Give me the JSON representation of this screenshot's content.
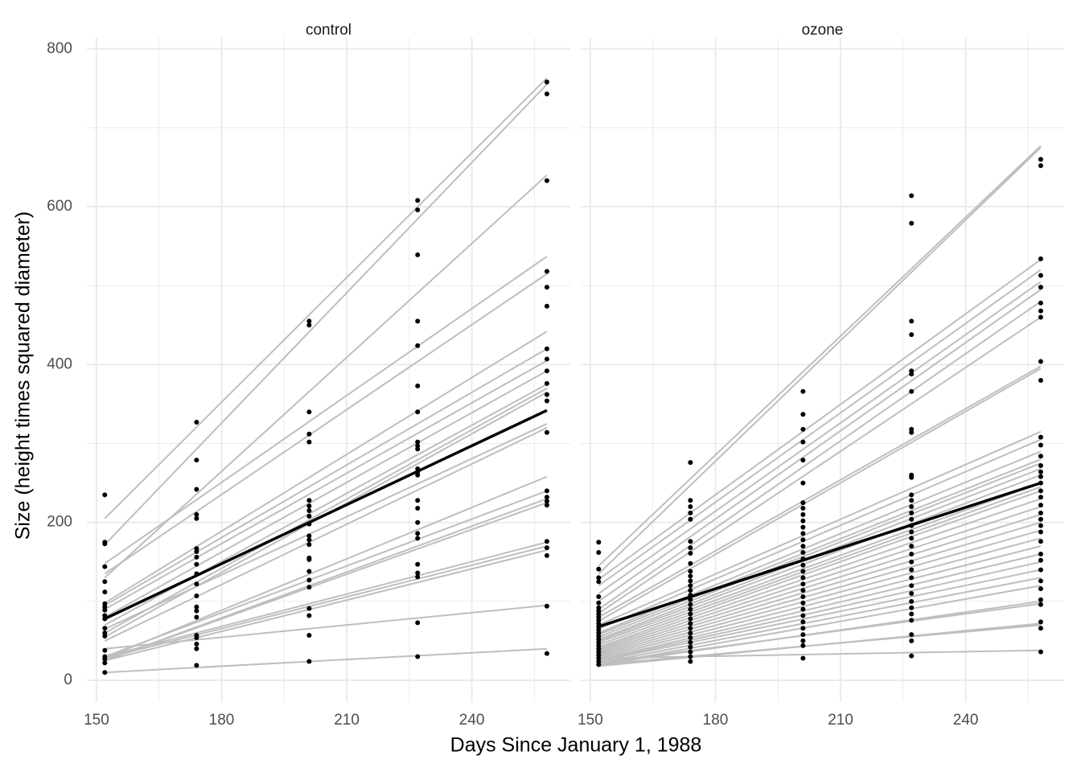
{
  "chart_data": {
    "type": "facet",
    "x_label": "Days Since January 1, 1988",
    "y_label": "Size (height times squared diameter)",
    "xlim": [
      147.7,
      263.6
    ],
    "ylim": [
      -27.5,
      814
    ],
    "xticks": [
      150,
      180,
      210,
      240
    ],
    "yticks": [
      0,
      200,
      400,
      600,
      800
    ],
    "minor_xticks": [
      165,
      195,
      225,
      255
    ],
    "minor_yticks": [
      100,
      300,
      500,
      700
    ],
    "grid": true,
    "point_color": "#000000",
    "line_color": "#bebebe",
    "mean_color": "#000000",
    "line_x": [
      152,
      258
    ],
    "panels": [
      {
        "title": "control",
        "points": [
          {
            "x": 152,
            "values": [
              235,
              175,
              173,
              144,
              125,
              112,
              97,
              93,
              89,
              82,
              78,
              66,
              60,
              56,
              38,
              30,
              27,
              22,
              10
            ]
          },
          {
            "x": 174,
            "values": [
              327,
              279,
              242,
              210,
              205,
              167,
              163,
              156,
              147,
              135,
              122,
              107,
              93,
              88,
              80,
              57,
              54,
              46,
              40,
              19
            ]
          },
          {
            "x": 201,
            "values": [
              455,
              450,
              340,
              312,
              302,
              228,
              221,
              215,
              208,
              198,
              183,
              178,
              172,
              155,
              153,
              138,
              127,
              118,
              91,
              82,
              57,
              24
            ]
          },
          {
            "x": 227,
            "values": [
              608,
              596,
              539,
              455,
              424,
              373,
              340,
              302,
              297,
              293,
              268,
              264,
              260,
              228,
              218,
              200,
              186,
              180,
              147,
              136,
              131,
              73,
              30
            ]
          },
          {
            "x": 258,
            "values": [
              758,
              743,
              633,
              518,
              498,
              474,
              420,
              407,
              392,
              376,
              362,
              354,
              314,
              240,
              232,
              227,
              222,
              176,
              168,
              158,
              94,
              34
            ]
          }
        ],
        "lines": [
          [
            205,
            763
          ],
          [
            172,
            755
          ],
          [
            130,
            640
          ],
          [
            148,
            537
          ],
          [
            135,
            515
          ],
          [
            98,
            442
          ],
          [
            95,
            420
          ],
          [
            90,
            405
          ],
          [
            80,
            392
          ],
          [
            70,
            375
          ],
          [
            60,
            370
          ],
          [
            55,
            365
          ],
          [
            65,
            325
          ],
          [
            50,
            320
          ],
          [
            28,
            258
          ],
          [
            30,
            240
          ],
          [
            25,
            230
          ],
          [
            25,
            225
          ],
          [
            30,
            175
          ],
          [
            28,
            170
          ],
          [
            25,
            165
          ],
          [
            40,
            95
          ],
          [
            10,
            40
          ]
        ],
        "mean": [
          78,
          342
        ]
      },
      {
        "title": "ozone",
        "points": [
          {
            "x": 152,
            "values": [
              175,
              162,
              141,
              130,
              125,
              106,
              98,
              92,
              88,
              84,
              80,
              76,
              72,
              68,
              64,
              60,
              56,
              52,
              48,
              44,
              40,
              36,
              32,
              28,
              24,
              20
            ]
          },
          {
            "x": 174,
            "values": [
              276,
              228,
              220,
              212,
              204,
              176,
              168,
              161,
              148,
              138,
              132,
              126,
              120,
              114,
              108,
              102,
              96,
              90,
              84,
              78,
              72,
              66,
              60,
              54,
              48,
              42,
              36,
              30,
              24
            ]
          },
          {
            "x": 201,
            "values": [
              366,
              337,
              318,
              302,
              279,
              250,
              225,
              218,
              210,
              202,
              194,
              186,
              178,
              170,
              162,
              154,
              146,
              138,
              130,
              122,
              114,
              106,
              98,
              90,
              82,
              74,
              66,
              58,
              50,
              44,
              28
            ]
          },
          {
            "x": 227,
            "values": [
              614,
              579,
              455,
              438,
              392,
              388,
              366,
              318,
              314,
              260,
              257,
              235,
              228,
              220,
              212,
              204,
              196,
              188,
              180,
              170,
              160,
              150,
              140,
              130,
              120,
              110,
              100,
              92,
              84,
              76,
              58,
              50,
              31
            ]
          },
          {
            "x": 258,
            "values": [
              660,
              652,
              534,
              513,
              498,
              478,
              468,
              460,
              404,
              380,
              308,
              298,
              284,
              272,
              264,
              258,
              250,
              240,
              232,
              222,
              212,
              204,
              196,
              188,
              176,
              160,
              152,
              140,
              126,
              116,
              102,
              96,
              74,
              66,
              36
            ]
          }
        ],
        "lines": [
          [
            145,
            677
          ],
          [
            135,
            675
          ],
          [
            128,
            533
          ],
          [
            120,
            520
          ],
          [
            110,
            505
          ],
          [
            100,
            495
          ],
          [
            90,
            480
          ],
          [
            85,
            460
          ],
          [
            80,
            398
          ],
          [
            75,
            395
          ],
          [
            70,
            315
          ],
          [
            65,
            305
          ],
          [
            60,
            290
          ],
          [
            58,
            280
          ],
          [
            55,
            275
          ],
          [
            52,
            268
          ],
          [
            50,
            260
          ],
          [
            48,
            250
          ],
          [
            45,
            245
          ],
          [
            42,
            240
          ],
          [
            40,
            230
          ],
          [
            38,
            220
          ],
          [
            36,
            210
          ],
          [
            34,
            200
          ],
          [
            32,
            190
          ],
          [
            30,
            180
          ],
          [
            28,
            170
          ],
          [
            26,
            160
          ],
          [
            25,
            150
          ],
          [
            24,
            140
          ],
          [
            22,
            130
          ],
          [
            20,
            120
          ],
          [
            20,
            100
          ],
          [
            22,
            97
          ],
          [
            18,
            72
          ],
          [
            20,
            70
          ],
          [
            28,
            38
          ]
        ],
        "mean": [
          68,
          250
        ]
      }
    ]
  }
}
